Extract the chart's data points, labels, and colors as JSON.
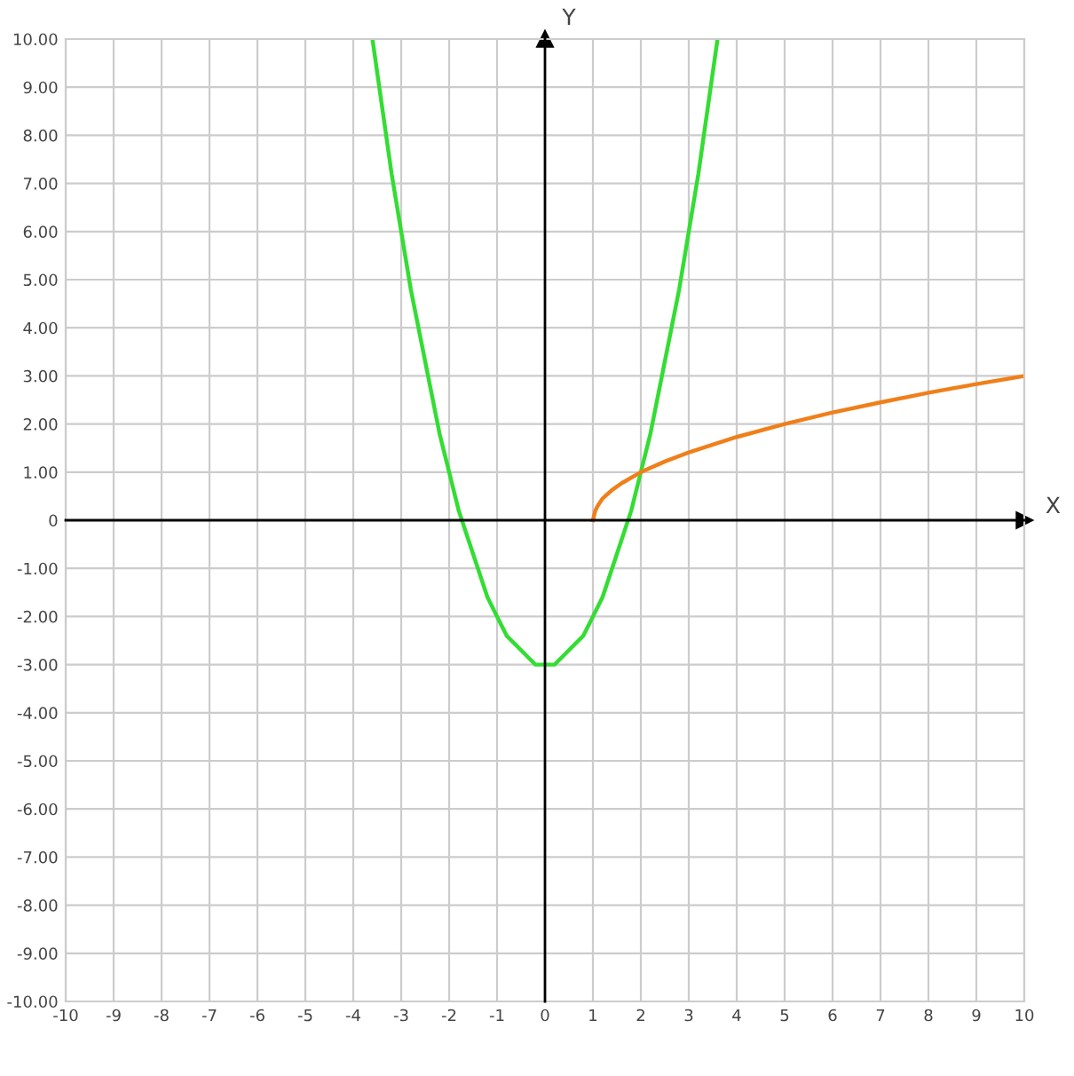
{
  "chart_data": {
    "type": "line",
    "xlabel": "X",
    "ylabel": "Y",
    "xlim": [
      -10,
      10
    ],
    "ylim": [
      -10,
      10
    ],
    "xticks": [
      -10,
      -9,
      -8,
      -7,
      -6,
      -5,
      -4,
      -3,
      -2,
      -1,
      0,
      1,
      2,
      3,
      4,
      5,
      6,
      7,
      8,
      9,
      10
    ],
    "yticks": [
      {
        "value": -10,
        "label": "-10.00"
      },
      {
        "value": -9,
        "label": "-9.00"
      },
      {
        "value": -8,
        "label": "-8.00"
      },
      {
        "value": -7,
        "label": "-7.00"
      },
      {
        "value": -6,
        "label": "-6.00"
      },
      {
        "value": -5,
        "label": "-5.00"
      },
      {
        "value": -4,
        "label": "-4.00"
      },
      {
        "value": -3,
        "label": "-3.00"
      },
      {
        "value": -2,
        "label": "-2.00"
      },
      {
        "value": -1,
        "label": "-1.00"
      },
      0,
      {
        "value": 1,
        "label": "1.00"
      },
      {
        "value": 2,
        "label": "2.00"
      },
      {
        "value": 3,
        "label": "3.00"
      },
      {
        "value": 4,
        "label": "4.00"
      },
      {
        "value": 5,
        "label": "5.00"
      },
      {
        "value": 6,
        "label": "6.00"
      },
      {
        "value": 7,
        "label": "7.00"
      },
      {
        "value": 8,
        "label": "8.00"
      },
      {
        "value": 9,
        "label": "9.00"
      },
      {
        "value": 10,
        "label": "10.00"
      }
    ],
    "grid": true,
    "marker": "none",
    "line_style": "solid",
    "series": [
      {
        "color": "#33dd33",
        "x": [
          -3.6,
          -3.4,
          -3.2,
          -3,
          -2.8,
          -2.6,
          -2.4,
          -2.2,
          -2,
          -1.8,
          -1.6,
          -1.4,
          -1.2,
          -1,
          -0.8,
          -0.6,
          -0.4,
          -0.2,
          0,
          0.2,
          0.4,
          0.6,
          0.8,
          1,
          1.2,
          1.4,
          1.6,
          1.8,
          2,
          2.2,
          2.4,
          2.6,
          2.8,
          3,
          3.2,
          3.4,
          3.6
        ],
        "values": [
          10,
          8.6,
          7.2,
          6,
          4.8,
          3.8,
          2.8,
          1.8,
          1,
          0.2,
          -0.4,
          -1,
          -1.6,
          -2,
          -2.4,
          -2.6,
          -2.8,
          -3,
          -3,
          -3,
          -2.8,
          -2.6,
          -2.4,
          -2,
          -1.6,
          -1,
          -0.4,
          0.2,
          1,
          1.8,
          2.8,
          3.8,
          4.8,
          6,
          7.2,
          8.6,
          10
        ]
      },
      {
        "color": "#f07f1a",
        "x": [
          1,
          1.05,
          1.1,
          1.2,
          1.4,
          1.6,
          2,
          2.5,
          3,
          4,
          5,
          6,
          7,
          8,
          9,
          10
        ],
        "values": [
          0,
          0.2,
          0.3,
          0.45,
          0.63,
          0.77,
          1,
          1.22,
          1.41,
          1.73,
          2,
          2.24,
          2.45,
          2.65,
          2.83,
          3
        ]
      }
    ]
  }
}
